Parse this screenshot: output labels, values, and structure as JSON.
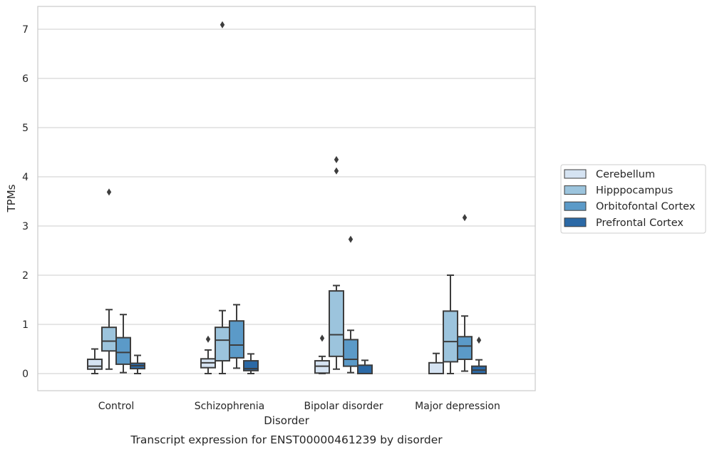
{
  "chart_data": {
    "type": "box",
    "title": "",
    "caption": "Transcript expression for ENST00000461239 by disorder",
    "xlabel": "Disorder",
    "ylabel": "TPMs",
    "ylim": [
      -0.35,
      7.45
    ],
    "yticks": [
      0,
      1,
      2,
      3,
      4,
      5,
      6,
      7
    ],
    "grid": "horizontal",
    "legend_position": "right-outside",
    "categories": [
      "Control",
      "Schizophrenia",
      "Bipolar disorder",
      "Major depression"
    ],
    "series": [
      {
        "name": "Cerebellum",
        "color": "#d5e3f2",
        "boxes": [
          {
            "whisker_low": 0.0,
            "q1": 0.09,
            "median": 0.15,
            "q3": 0.29,
            "whisker_high": 0.5,
            "outliers": []
          },
          {
            "whisker_low": 0.0,
            "q1": 0.12,
            "median": 0.22,
            "q3": 0.3,
            "whisker_high": 0.48,
            "outliers": [
              0.7
            ]
          },
          {
            "whisker_low": 0.0,
            "q1": 0.01,
            "median": 0.15,
            "q3": 0.26,
            "whisker_high": 0.35,
            "outliers": [
              0.72
            ]
          },
          {
            "whisker_low": 0.0,
            "q1": 0.0,
            "median": 0.0,
            "q3": 0.22,
            "whisker_high": 0.41,
            "outliers": []
          }
        ]
      },
      {
        "name": "Hipppocampus",
        "color": "#9cc4dd",
        "boxes": [
          {
            "whisker_low": 0.09,
            "q1": 0.46,
            "median": 0.66,
            "q3": 0.94,
            "whisker_high": 1.3,
            "outliers": [
              3.69
            ]
          },
          {
            "whisker_low": 0.0,
            "q1": 0.26,
            "median": 0.68,
            "q3": 0.94,
            "whisker_high": 1.28,
            "outliers": [
              7.09
            ]
          },
          {
            "whisker_low": 0.09,
            "q1": 0.35,
            "median": 0.79,
            "q3": 1.68,
            "whisker_high": 1.79,
            "outliers": [
              4.12,
              4.35
            ]
          },
          {
            "whisker_low": 0.0,
            "q1": 0.24,
            "median": 0.65,
            "q3": 1.27,
            "whisker_high": 2.0,
            "outliers": []
          }
        ]
      },
      {
        "name": "Orbitofontal Cortex",
        "color": "#5b9ac8",
        "boxes": [
          {
            "whisker_low": 0.02,
            "q1": 0.19,
            "median": 0.43,
            "q3": 0.73,
            "whisker_high": 1.2,
            "outliers": []
          },
          {
            "whisker_low": 0.11,
            "q1": 0.32,
            "median": 0.58,
            "q3": 1.07,
            "whisker_high": 1.4,
            "outliers": []
          },
          {
            "whisker_low": 0.02,
            "q1": 0.15,
            "median": 0.29,
            "q3": 0.69,
            "whisker_high": 0.88,
            "outliers": [
              2.73
            ]
          },
          {
            "whisker_low": 0.05,
            "q1": 0.29,
            "median": 0.56,
            "q3": 0.75,
            "whisker_high": 1.17,
            "outliers": [
              3.17
            ]
          }
        ]
      },
      {
        "name": "Prefrontal Cortex",
        "color": "#2b69a6",
        "boxes": [
          {
            "whisker_low": 0.0,
            "q1": 0.1,
            "median": 0.16,
            "q3": 0.21,
            "whisker_high": 0.37,
            "outliers": []
          },
          {
            "whisker_low": 0.0,
            "q1": 0.06,
            "median": 0.1,
            "q3": 0.26,
            "whisker_high": 0.4,
            "outliers": []
          },
          {
            "whisker_low": 0.0,
            "q1": 0.0,
            "median": 0.0,
            "q3": 0.17,
            "whisker_high": 0.27,
            "outliers": []
          },
          {
            "whisker_low": 0.0,
            "q1": 0.0,
            "median": 0.07,
            "q3": 0.15,
            "whisker_high": 0.28,
            "outliers": [
              0.68
            ]
          }
        ]
      }
    ]
  }
}
